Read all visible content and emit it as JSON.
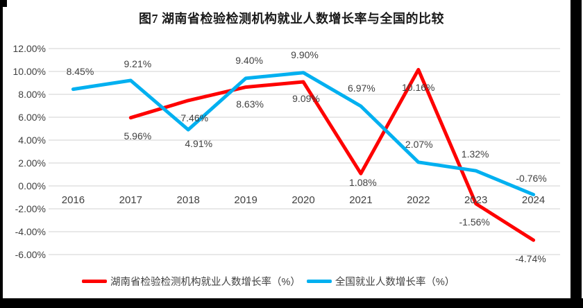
{
  "chart_data": {
    "type": "line",
    "title": "图7 湖南省检验检测机构就业人数增长率与全国的比较",
    "categories": [
      "2016",
      "2017",
      "2018",
      "2019",
      "2020",
      "2021",
      "2022",
      "2023",
      "2024"
    ],
    "series": [
      {
        "name": "湖南省检验检测机构就业人数增长率（%）",
        "color": "#FE0000",
        "values": [
          null,
          5.96,
          7.46,
          8.63,
          9.09,
          1.08,
          10.16,
          -1.56,
          -4.74
        ],
        "data_labels": [
          "",
          "5.96%",
          "7.46%",
          "8.63%",
          "9.09%",
          "1.08%",
          "10.16%",
          "-1.56%",
          "-4.74%"
        ],
        "label_offsets": [
          [
            0,
            0
          ],
          [
            10,
            26
          ],
          [
            9,
            25
          ],
          [
            6,
            24
          ],
          [
            4,
            24
          ],
          [
            3,
            13
          ],
          [
            0,
            26
          ],
          [
            -2,
            26
          ],
          [
            -4,
            27
          ]
        ]
      },
      {
        "name": "全国就业人数增长率（%）",
        "color": "#00B0F0",
        "values": [
          8.45,
          9.21,
          4.91,
          9.4,
          9.9,
          6.97,
          2.07,
          1.32,
          -0.76
        ],
        "data_labels": [
          "8.45%",
          "9.21%",
          "4.91%",
          "9.40%",
          "9.90%",
          "6.97%",
          "2.07%",
          "1.32%",
          "-0.76%"
        ],
        "label_offsets": [
          [
            10,
            -26
          ],
          [
            10,
            -24
          ],
          [
            15,
            20
          ],
          [
            5,
            -26
          ],
          [
            2,
            -26
          ],
          [
            1,
            -26
          ],
          [
            1,
            -26
          ],
          [
            -1,
            -24
          ],
          [
            -3,
            -24
          ]
        ]
      }
    ],
    "ylim": [
      -6,
      12
    ],
    "ytick_step": 2,
    "ytick_labels": [
      "12.00%",
      "10.00%",
      "8.00%",
      "6.00%",
      "4.00%",
      "2.00%",
      "0.00%",
      "-2.00%",
      "-4.00%",
      "-6.00%"
    ],
    "grid": true,
    "gridline_color": "#D9D9D9",
    "text_color": "#404040",
    "legend_position": "bottom"
  }
}
